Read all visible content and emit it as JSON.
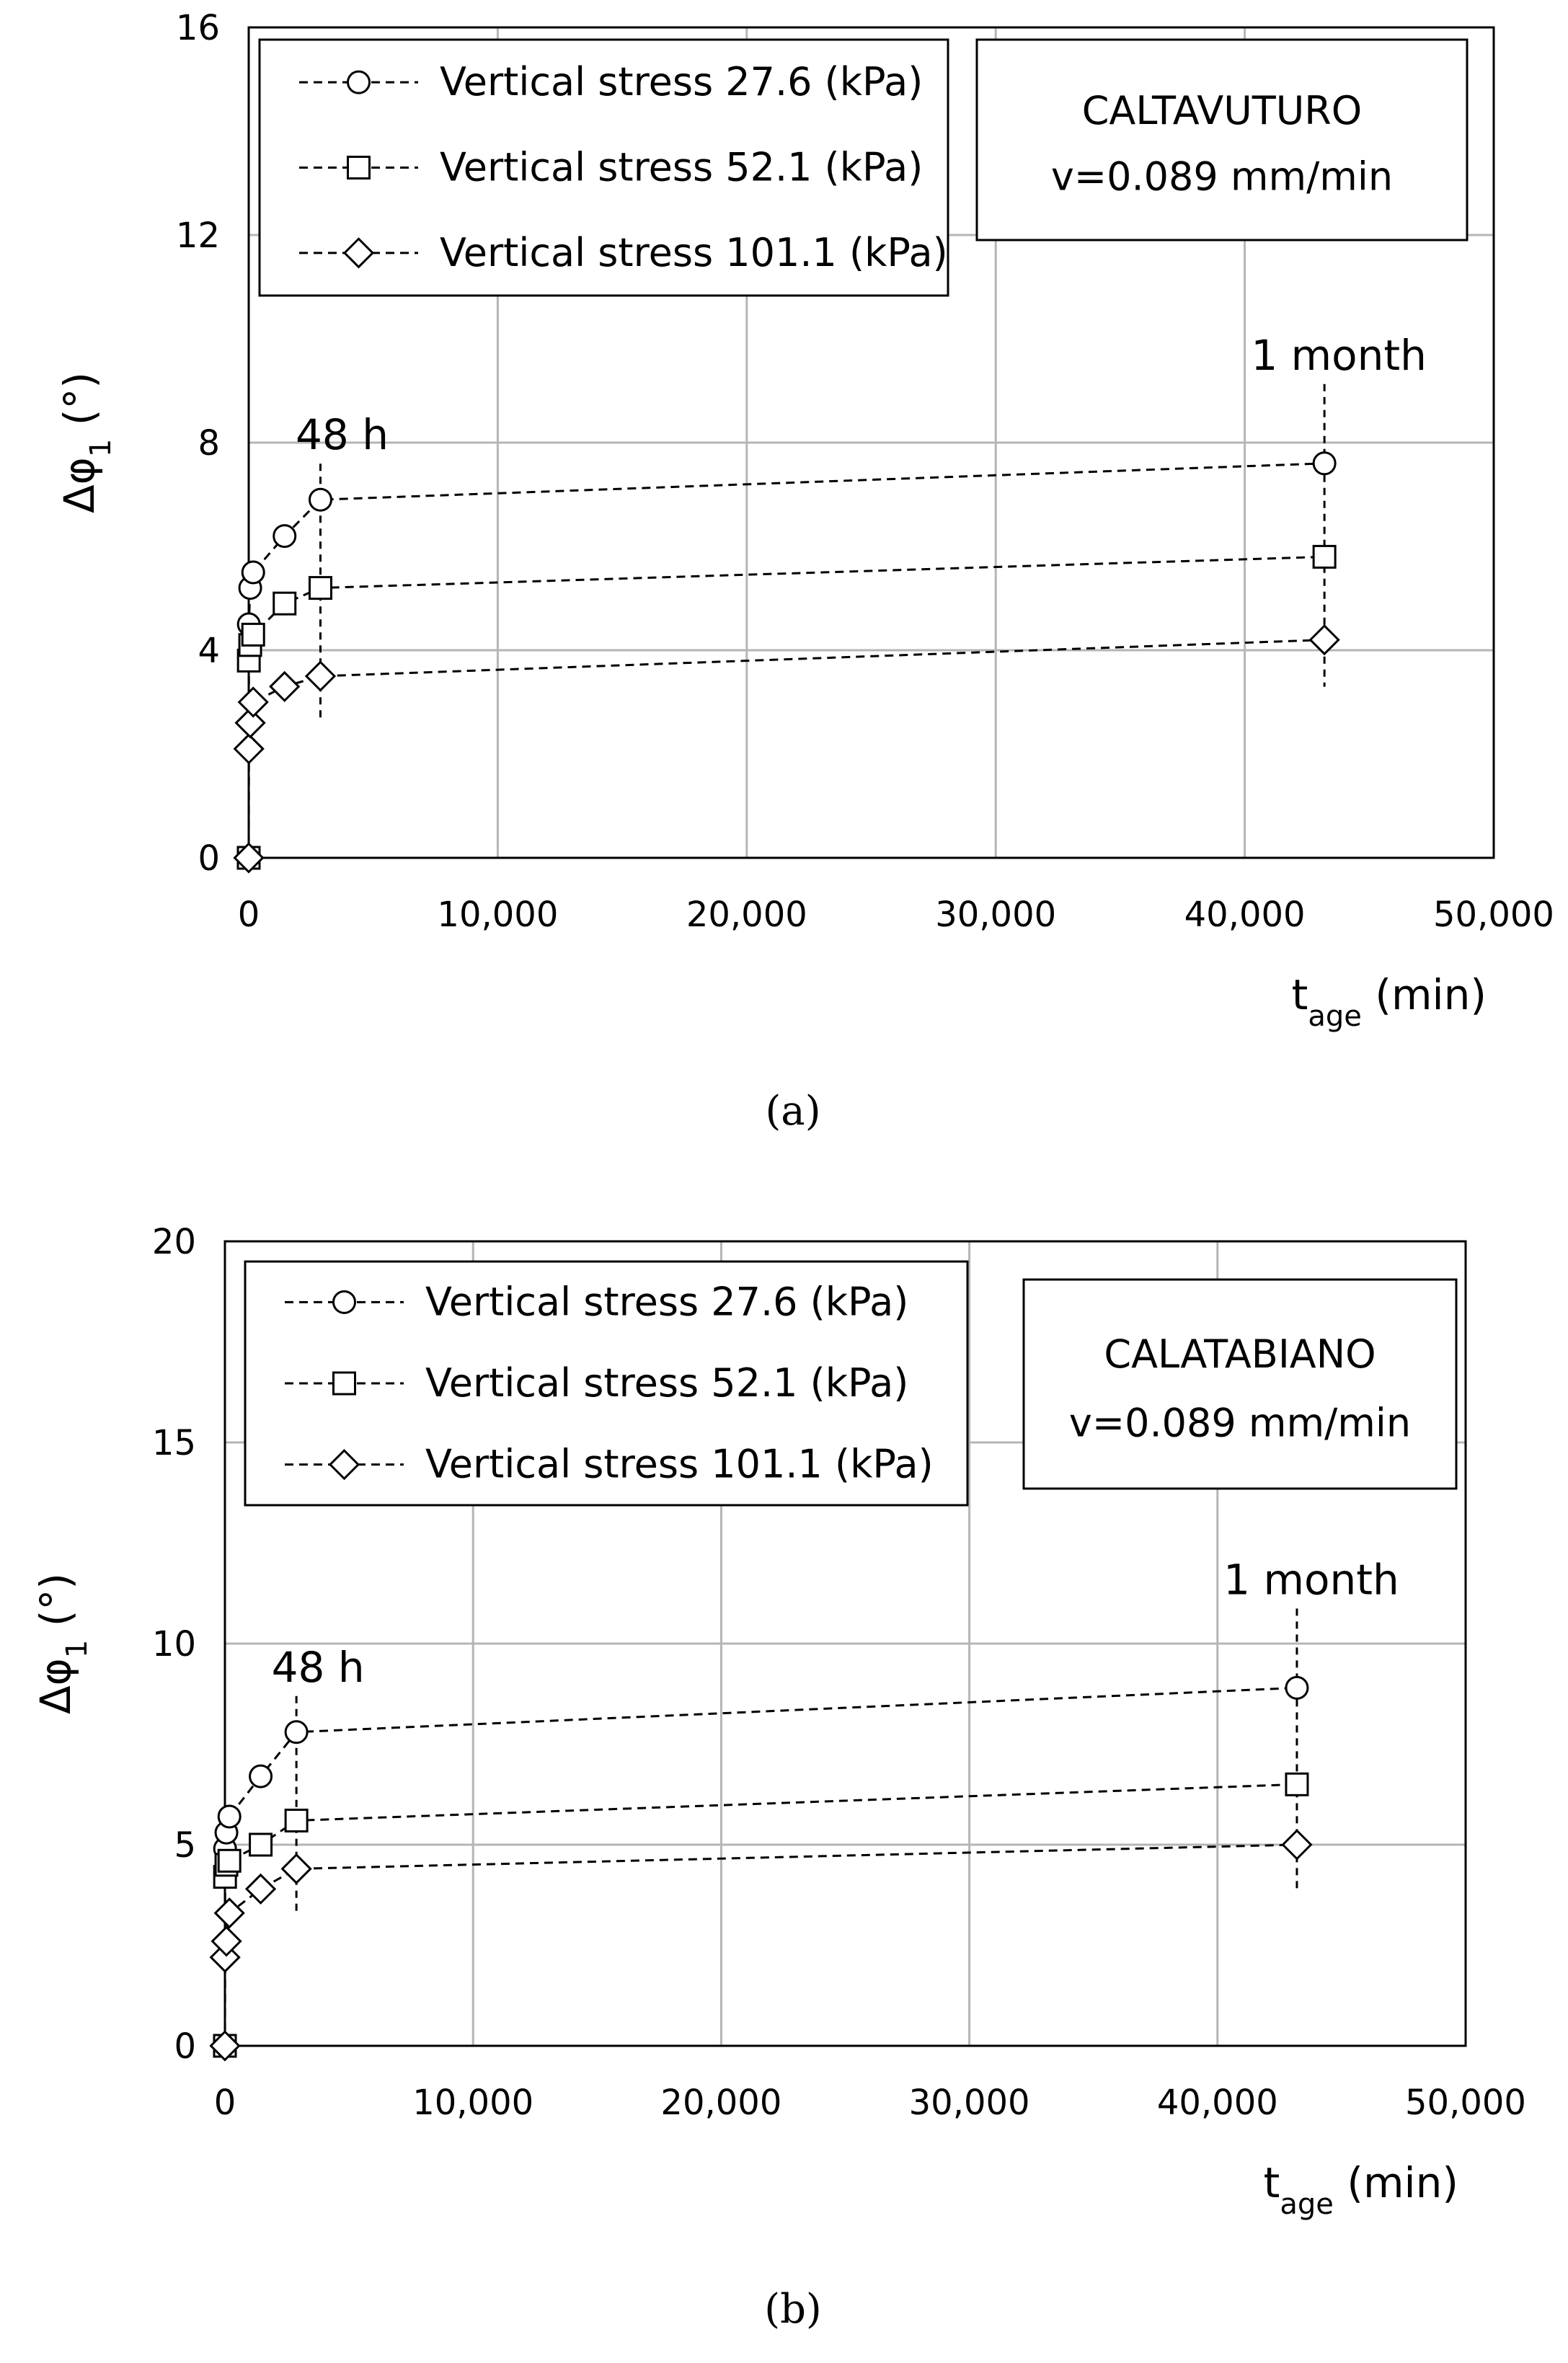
{
  "chart_data": [
    {
      "type": "scatter",
      "panel_label": "a",
      "ylabel": "Δφ1 (°)",
      "xlabel": "tage (min)",
      "xlim": [
        0,
        50000
      ],
      "ylim": [
        0,
        16
      ],
      "xticks": [
        0,
        10000,
        20000,
        30000,
        40000,
        50000
      ],
      "xtick_labels": [
        "0",
        "10,000",
        "20,000",
        "30,000",
        "40,000",
        "50,000"
      ],
      "yticks": [
        0,
        4,
        8,
        12,
        16
      ],
      "ytick_labels": [
        "0",
        "4",
        "8",
        "12",
        "16"
      ],
      "grid": true,
      "info_box": {
        "site": "CALTAVUTURO",
        "speed": "v=0.089 mm/min"
      },
      "annotations": [
        {
          "text": "48 h",
          "x": 2880
        },
        {
          "text": "1 month",
          "x": 43200
        }
      ],
      "legend_position": "top-left",
      "series": [
        {
          "name": "Vertical stress 27.6 (kPa)",
          "marker": "circle",
          "x": [
            0,
            5,
            60,
            180,
            1440,
            2880,
            43200
          ],
          "y": [
            0,
            4.5,
            5.2,
            5.5,
            6.2,
            6.9,
            7.6
          ]
        },
        {
          "name": "Vertical stress 52.1 (kPa)",
          "marker": "square",
          "x": [
            0,
            5,
            60,
            180,
            1440,
            2880,
            43200
          ],
          "y": [
            0,
            3.8,
            4.1,
            4.3,
            4.9,
            5.2,
            5.8
          ]
        },
        {
          "name": "Vertical stress 101.1 (kPa)",
          "marker": "diamond",
          "x": [
            0,
            5,
            60,
            180,
            1440,
            2880,
            43200
          ],
          "y": [
            0,
            2.1,
            2.6,
            3.0,
            3.3,
            3.5,
            4.2
          ]
        }
      ]
    },
    {
      "type": "scatter",
      "panel_label": "b",
      "ylabel": "Δφ1 (°)",
      "xlabel": "tage (min)",
      "xlim": [
        0,
        50000
      ],
      "ylim": [
        0,
        20
      ],
      "xticks": [
        0,
        10000,
        20000,
        30000,
        40000,
        50000
      ],
      "xtick_labels": [
        "0",
        "10,000",
        "20,000",
        "30,000",
        "40,000",
        "50,000"
      ],
      "yticks": [
        0,
        5,
        10,
        15,
        20
      ],
      "ytick_labels": [
        "0",
        "5",
        "10",
        "15",
        "20"
      ],
      "grid": true,
      "info_box": {
        "site": "CALATABIANO",
        "speed": "v=0.089 mm/min"
      },
      "annotations": [
        {
          "text": "48 h",
          "x": 2880
        },
        {
          "text": "1 month",
          "x": 43200
        }
      ],
      "legend_position": "top-left",
      "series": [
        {
          "name": "Vertical stress 27.6 (kPa)",
          "marker": "circle",
          "x": [
            0,
            5,
            60,
            180,
            1440,
            2880,
            43200
          ],
          "y": [
            0,
            4.9,
            5.3,
            5.7,
            6.7,
            7.8,
            8.9
          ]
        },
        {
          "name": "Vertical stress 52.1 (kPa)",
          "marker": "square",
          "x": [
            0,
            5,
            60,
            180,
            1440,
            2880,
            43200
          ],
          "y": [
            0,
            4.2,
            4.5,
            4.6,
            5.0,
            5.6,
            6.5
          ]
        },
        {
          "name": "Vertical stress 101.1 (kPa)",
          "marker": "diamond",
          "x": [
            0,
            5,
            60,
            180,
            1440,
            2880,
            43200
          ],
          "y": [
            0,
            2.2,
            2.6,
            3.3,
            3.9,
            4.4,
            5.0
          ]
        }
      ]
    }
  ],
  "captions": {
    "a": "(a)",
    "b": "(b)"
  },
  "axis_text": {
    "y_symbol": "Δφ",
    "y_sub": "1",
    "y_unit": " (°)",
    "x_symbol": "t",
    "x_sub": "age",
    "x_unit": " (min)"
  }
}
